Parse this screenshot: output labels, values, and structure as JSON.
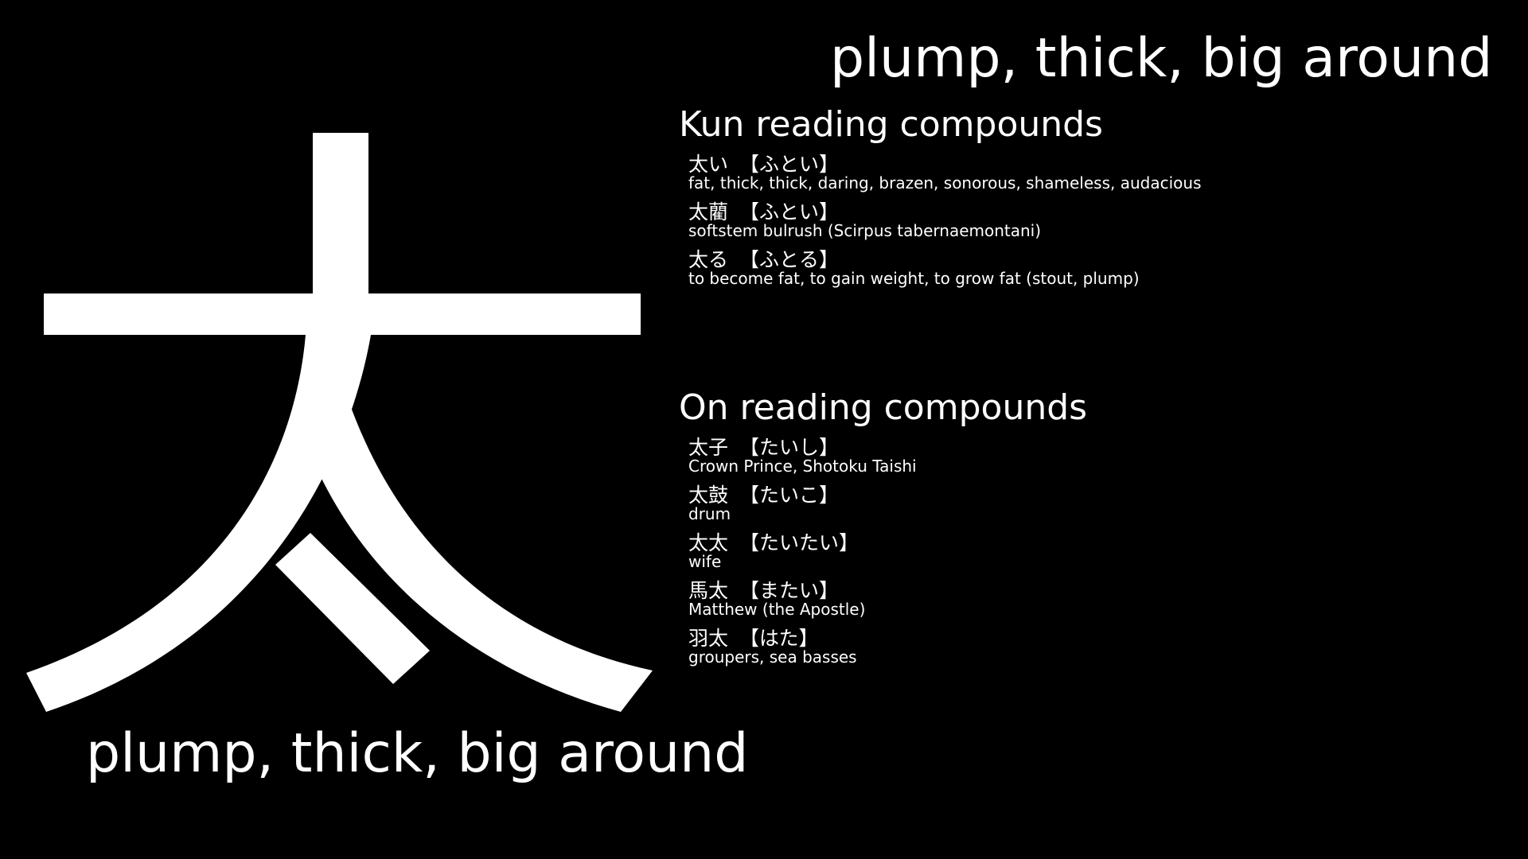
{
  "kanji": {
    "character": "太",
    "glyph": "kanji-character-graphic"
  },
  "meaning_top": "plump, thick, big around",
  "meaning_bottom": "plump, thick, big around",
  "kun": {
    "heading": "Kun reading compounds",
    "items": [
      {
        "word": "太い",
        "reading": "【ふとい】",
        "meaning": "fat, thick, thick, daring, brazen, sonorous, shameless, audacious"
      },
      {
        "word": "太藺",
        "reading": "【ふとい】",
        "meaning": "softstem bulrush (Scirpus tabernaemontani)"
      },
      {
        "word": "太る",
        "reading": "【ふとる】",
        "meaning": "to become fat, to gain weight, to grow fat (stout, plump)"
      }
    ]
  },
  "on": {
    "heading": "On reading compounds",
    "items": [
      {
        "word": "太子",
        "reading": "【たいし】",
        "meaning": "Crown Prince, Shotoku Taishi"
      },
      {
        "word": "太鼓",
        "reading": "【たいこ】",
        "meaning": "drum"
      },
      {
        "word": "太太",
        "reading": "【たいたい】",
        "meaning": "wife"
      },
      {
        "word": "馬太",
        "reading": "【またい】",
        "meaning": "Matthew (the Apostle)"
      },
      {
        "word": "羽太",
        "reading": "【はた】",
        "meaning": "groupers, sea basses"
      }
    ]
  },
  "colors": {
    "background": "#000000",
    "foreground": "#ffffff"
  }
}
